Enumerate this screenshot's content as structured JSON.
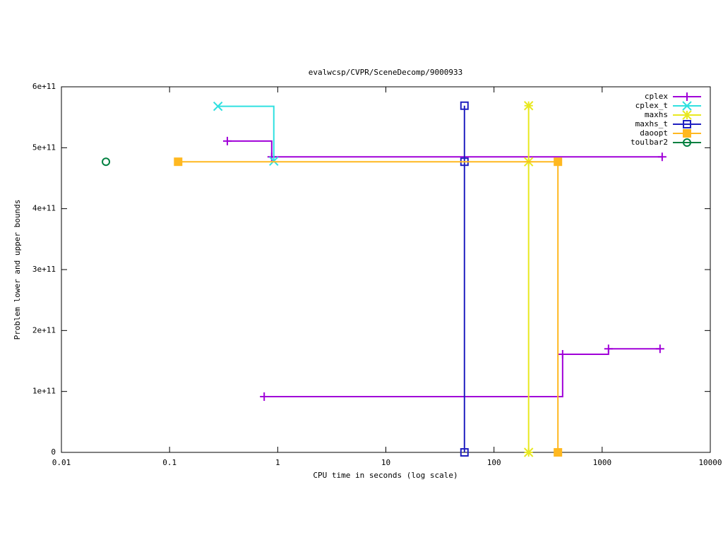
{
  "chart_data": {
    "type": "line",
    "step": true,
    "title": "evalwcsp/CVPR/SceneDecomp/9000933",
    "x_label": "CPU time in seconds (log scale)",
    "y_label": "Problem lower and upper bounds",
    "x_log": true,
    "legend": "top-right",
    "xlim": [
      0.01,
      10000
    ],
    "xticks": [
      0.01,
      0.1,
      1,
      10,
      100,
      1000,
      10000
    ],
    "ylim": [
      0,
      600000000000
    ],
    "yticks": [
      0,
      {
        "value": 100000000000,
        "label": "1e+11"
      },
      {
        "value": 200000000000,
        "label": "2e+11"
      },
      {
        "value": 300000000000,
        "label": "3e+11"
      },
      {
        "value": 400000000000,
        "label": "4e+11"
      },
      {
        "value": 500000000000,
        "label": "5e+11"
      },
      {
        "value": 600000000000,
        "label": "6e+11"
      }
    ],
    "series": [
      {
        "name": "cplex",
        "color": "#a000d8",
        "marker": "plus",
        "x": [
          0.342,
          0.88,
          3590,
          null,
          0.75,
          431,
          1145,
          3430
        ],
        "values": [
          511000000000,
          485000000000,
          485000000000,
          null,
          91500000000,
          161000000000,
          170000000000,
          170000000000
        ]
      },
      {
        "name": "cplex_t",
        "color": "#30e0e0",
        "marker": "cross",
        "x": [
          0.28,
          0.92
        ],
        "values": [
          568000000000,
          478000000000
        ]
      },
      {
        "name": "maxhs",
        "color": "#e8e820",
        "marker": "star",
        "x": [
          209,
          209,
          209
        ],
        "values": [
          569000000000,
          477000000000,
          0
        ]
      },
      {
        "name": "maxhs_t",
        "color": "#2020c0",
        "marker": "square-open",
        "x": [
          53.3,
          53.3,
          53.3
        ],
        "values": [
          569000000000,
          477000000000,
          0
        ]
      },
      {
        "name": "daoopt",
        "color": "#ffb820",
        "marker": "square",
        "x": [
          0.12,
          390,
          390
        ],
        "values": [
          477000000000,
          477000000000,
          0
        ]
      },
      {
        "name": "toulbar2",
        "color": "#008040",
        "marker": "circle",
        "x": [
          0.0258
        ],
        "values": [
          477000000000
        ]
      }
    ]
  }
}
